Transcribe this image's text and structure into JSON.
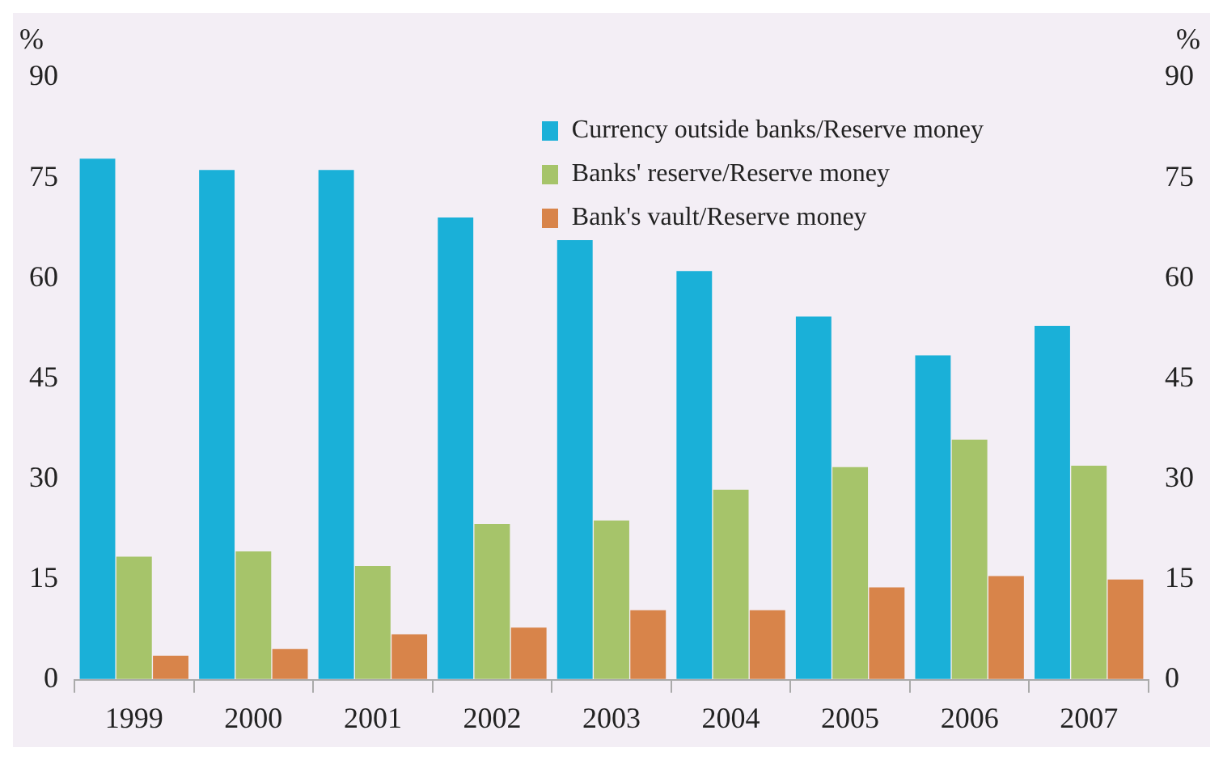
{
  "chart_data": {
    "type": "bar",
    "ylabel": "%",
    "y2label": "%",
    "categories": [
      "1999",
      "2000",
      "2001",
      "2002",
      "2003",
      "2004",
      "2005",
      "2006",
      "2007"
    ],
    "series": [
      {
        "name": "Currency outside banks/Reserve money",
        "color": "#1ab0d8",
        "values": [
          77.9,
          76.2,
          76.2,
          69.1,
          65.7,
          61.1,
          54.3,
          48.5,
          52.9
        ]
      },
      {
        "name": "Banks' reserve/Reserve money",
        "color": "#a6c46a",
        "values": [
          18.4,
          19.2,
          17.0,
          23.3,
          23.8,
          28.4,
          31.8,
          35.9,
          32.0
        ]
      },
      {
        "name": "Bank's vault/Reserve money",
        "color": "#d8844a",
        "values": [
          3.6,
          4.6,
          6.8,
          7.8,
          10.4,
          10.4,
          13.8,
          15.5,
          15.0
        ]
      }
    ],
    "ylim": [
      0,
      90
    ],
    "yticks": [
      0,
      15,
      30,
      45,
      60,
      75,
      90
    ],
    "y2lim": [
      0,
      90
    ],
    "y2ticks": [
      0,
      15,
      30,
      45,
      60,
      75,
      90
    ],
    "grid": false,
    "legend": "top right"
  }
}
